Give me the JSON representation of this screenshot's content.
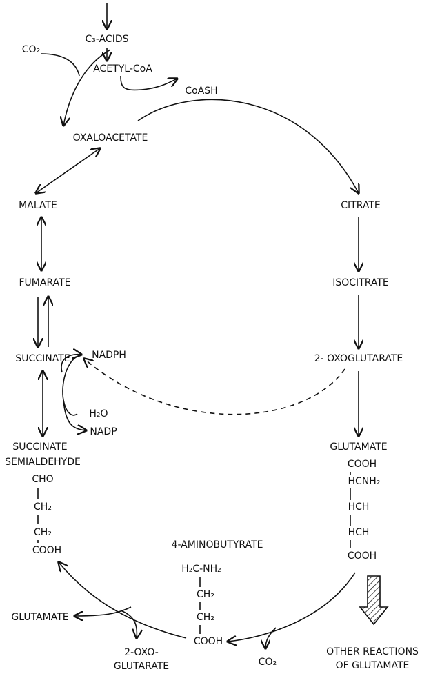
{
  "nodes": [
    {
      "label": "C₃-ACIDS"
    },
    {
      "label": "ACETYL-CoA"
    },
    {
      "label": "CO₂"
    },
    {
      "label": "CoASH"
    },
    {
      "label": "OXALOACETATE"
    },
    {
      "label": "CITRATE"
    },
    {
      "label": "MALATE"
    },
    {
      "label": "FUMARATE"
    },
    {
      "label": "ISOCITRATE"
    },
    {
      "label": "SUCCINATE"
    },
    {
      "label": "NADPH"
    },
    {
      "label": "2- OXOGLUTARATE"
    },
    {
      "label": "H₂O"
    },
    {
      "label": "NADP"
    },
    {
      "label": "SUCCINATE"
    },
    {
      "label": "SEMIALDEHYDE"
    },
    {
      "label": "CHO"
    },
    {
      "label": "CH₂"
    },
    {
      "label": "CH₂"
    },
    {
      "label": "COOH"
    },
    {
      "label": "GLUTAMATE"
    },
    {
      "label": "COOH"
    },
    {
      "label": "HCNH₂"
    },
    {
      "label": "HCH"
    },
    {
      "label": "HCH"
    },
    {
      "label": "COOH"
    },
    {
      "label": "4-AMINOBUTYRATE"
    },
    {
      "label": "H₂C-NH₂"
    },
    {
      "label": "CH₂"
    },
    {
      "label": "CH₂"
    },
    {
      "label": "COOH"
    },
    {
      "label": "GLUTAMATE"
    },
    {
      "label": "2-OXO-"
    },
    {
      "label": "GLUTARATE"
    },
    {
      "label": "CO₂"
    },
    {
      "label": "OTHER REACTIONS"
    },
    {
      "label": "OF GLUTAMATE"
    }
  ]
}
